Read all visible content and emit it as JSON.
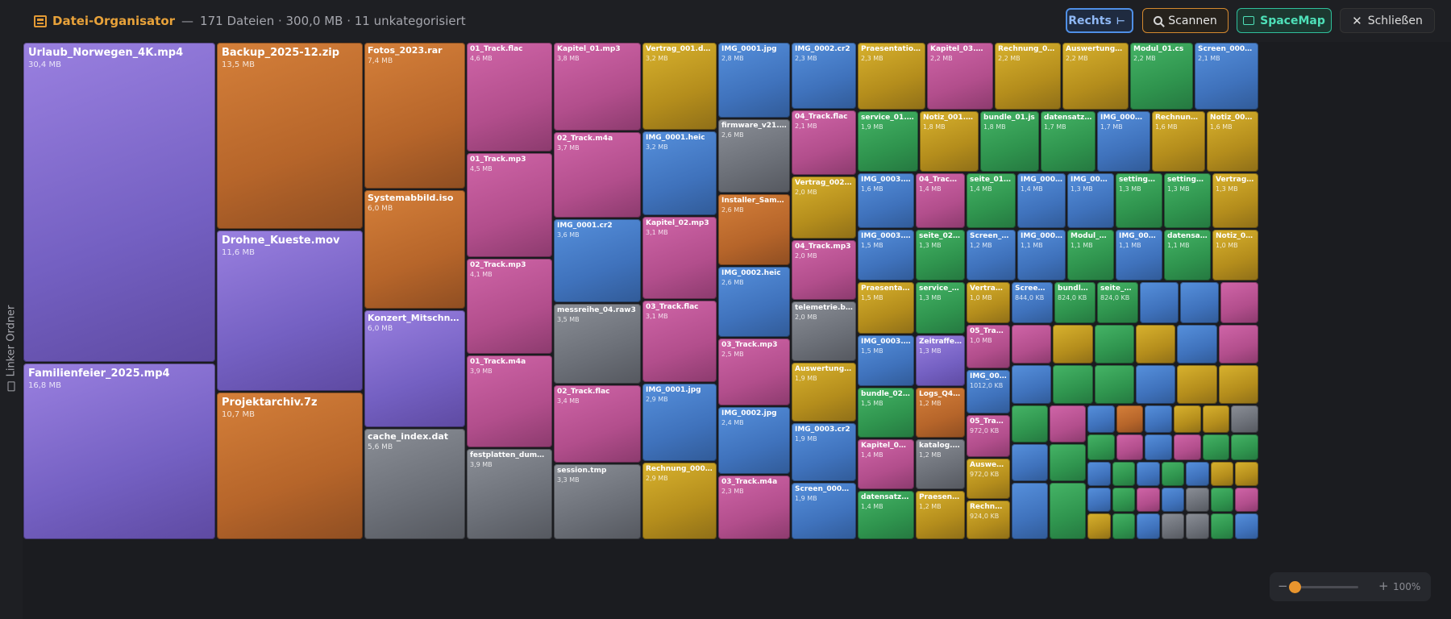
{
  "header": {
    "app_name": "Datei-Organisator",
    "separator": "—",
    "summary": "171 Dateien · 300,0 MB · 11 unkategorisiert",
    "buttons": {
      "rechts": "Rechts",
      "scan": "Scannen",
      "spacemap": "SpaceMap",
      "close": "Schließen"
    }
  },
  "sidebar": {
    "label": "Linker Ordner"
  },
  "colors": {
    "video": "#7a64c8",
    "archive": "#c06a2c",
    "audio": "#b84f8f",
    "document": "#c09a20",
    "image": "#4a7fc8",
    "code": "#33a257",
    "other": "#72767e",
    "accent": "#e8a23a"
  },
  "tiles": [
    {
      "name": "Urlaub_Norwegen_4K.mp4",
      "size": "30,4 MB",
      "cat": "video"
    },
    {
      "name": "Familienfeier_2025.mp4",
      "size": "16,8 MB",
      "cat": "video"
    },
    {
      "name": "Backup_2025-12.zip",
      "size": "13,5 MB",
      "cat": "archive"
    },
    {
      "name": "Drohne_Kueste.mov",
      "size": "11,6 MB",
      "cat": "video"
    },
    {
      "name": "Projektarchiv.7z",
      "size": "10,7 MB",
      "cat": "archive"
    },
    {
      "name": "Fotos_2023.rar",
      "size": "7,4 MB",
      "cat": "archive"
    },
    {
      "name": "Systemabbild.iso",
      "size": "6,0 MB",
      "cat": "archive"
    },
    {
      "name": "Konzert_Mitschnitt.mkv",
      "size": "6,0 MB",
      "cat": "video"
    },
    {
      "name": "cache_index.dat",
      "size": "5,6 MB",
      "cat": "other"
    },
    {
      "name": "01_Track.flac",
      "size": "4,6 MB",
      "cat": "audio"
    },
    {
      "name": "01_Track.mp3",
      "size": "4,5 MB",
      "cat": "audio"
    },
    {
      "name": "02_Track.mp3",
      "size": "4,1 MB",
      "cat": "audio"
    },
    {
      "name": "01_Track.m4a",
      "size": "3,9 MB",
      "cat": "audio"
    },
    {
      "name": "festplatten_dump.bin",
      "size": "3,9 MB",
      "cat": "other"
    },
    {
      "name": "Kapitel_01.mp3",
      "size": "3,8 MB",
      "cat": "audio"
    },
    {
      "name": "02_Track.m4a",
      "size": "3,7 MB",
      "cat": "audio"
    },
    {
      "name": "IMG_0001.cr2",
      "size": "3,6 MB",
      "cat": "image"
    },
    {
      "name": "messreihe_04.raw3",
      "size": "3,5 MB",
      "cat": "other"
    },
    {
      "name": "02_Track.flac",
      "size": "3,4 MB",
      "cat": "audio"
    },
    {
      "name": "session.tmp",
      "size": "3,3 MB",
      "cat": "other"
    },
    {
      "name": "Vertrag_001.docx",
      "size": "3,2 MB",
      "cat": "document"
    },
    {
      "name": "IMG_0001.heic",
      "size": "3,2 MB",
      "cat": "image"
    },
    {
      "name": "Kapitel_02.mp3",
      "size": "3,1 MB",
      "cat": "audio"
    },
    {
      "name": "03_Track.flac",
      "size": "3,1 MB",
      "cat": "audio"
    },
    {
      "name": "IMG_0001.jpg",
      "size": "2,9 MB",
      "cat": "image"
    },
    {
      "name": "Rechnung_0001.pdf",
      "size": "2,9 MB",
      "cat": "document"
    },
    {
      "name": "IMG_0001.jpg",
      "size": "2,8 MB",
      "cat": "image"
    },
    {
      "name": "firmware_v21.pkg",
      "size": "2,6 MB",
      "cat": "other"
    },
    {
      "name": "Installer_Sammlung.zip",
      "size": "2,6 MB",
      "cat": "archive"
    },
    {
      "name": "IMG_0002.heic",
      "size": "2,6 MB",
      "cat": "image"
    },
    {
      "name": "03_Track.mp3",
      "size": "2,5 MB",
      "cat": "audio"
    },
    {
      "name": "IMG_0002.jpg",
      "size": "2,4 MB",
      "cat": "image"
    },
    {
      "name": "03_Track.m4a",
      "size": "2,3 MB",
      "cat": "audio"
    },
    {
      "name": "IMG_0002.cr2",
      "size": "2,3 MB",
      "cat": "image"
    },
    {
      "name": "04_Track.flac",
      "size": "2,1 MB",
      "cat": "audio"
    },
    {
      "name": "Vertrag_002.docx",
      "size": "2,0 MB",
      "cat": "document"
    },
    {
      "name": "04_Track.mp3",
      "size": "2,0 MB",
      "cat": "audio"
    },
    {
      "name": "telemetrie.blob",
      "size": "2,0 MB",
      "cat": "other"
    },
    {
      "name": "Auswertung_02.xlsx",
      "size": "1,9 MB",
      "cat": "document"
    },
    {
      "name": "IMG_0003.cr2",
      "size": "1,9 MB",
      "cat": "image"
    },
    {
      "name": "Screen_0002.png",
      "size": "1,9 MB",
      "cat": "image"
    },
    {
      "name": "Praesentation_01.pptx",
      "size": "2,3 MB",
      "cat": "document"
    },
    {
      "name": "Kapitel_03.mp3",
      "size": "2,2 MB",
      "cat": "audio"
    },
    {
      "name": "Rechnung_0002.pdf",
      "size": "2,2 MB",
      "cat": "document"
    },
    {
      "name": "Auswertung_01.xlsx",
      "size": "2,2 MB",
      "cat": "document"
    },
    {
      "name": "Modul_01.cs",
      "size": "2,2 MB",
      "cat": "code"
    },
    {
      "name": "Screen_0001.png",
      "size": "2,1 MB",
      "cat": "image"
    },
    {
      "name": "service_01.py",
      "size": "1,9 MB",
      "cat": "code"
    },
    {
      "name": "Notiz_001.txt",
      "size": "1,8 MB",
      "cat": "document"
    },
    {
      "name": "bundle_01.js",
      "size": "1,8 MB",
      "cat": "code"
    },
    {
      "name": "datensatz_01.json",
      "size": "1,7 MB",
      "cat": "code"
    },
    {
      "name": "IMG_0002.jpg",
      "size": "1,7 MB",
      "cat": "image"
    },
    {
      "name": "Rechnung_0003...",
      "size": "1,6 MB",
      "cat": "document"
    },
    {
      "name": "Notiz_002.txt",
      "size": "1,6 MB",
      "cat": "document"
    },
    {
      "name": "IMG_0003.jpg",
      "size": "1,6 MB",
      "cat": "image"
    },
    {
      "name": "04_Track.m4a",
      "size": "1,4 MB",
      "cat": "audio"
    },
    {
      "name": "seite_01.html",
      "size": "1,4 MB",
      "cat": "code"
    },
    {
      "name": "IMG_0004.cr2",
      "size": "1,4 MB",
      "cat": "image"
    },
    {
      "name": "IMG_0004.jpg",
      "size": "1,3 MB",
      "cat": "image"
    },
    {
      "name": "settings_02.xml",
      "size": "1,3 MB",
      "cat": "code"
    },
    {
      "name": "settings_01.xml",
      "size": "1,3 MB",
      "cat": "code"
    },
    {
      "name": "Vertrag_003.d...",
      "size": "1,3 MB",
      "cat": "document"
    },
    {
      "name": "IMG_0003.jpg",
      "size": "1,5 MB",
      "cat": "image"
    },
    {
      "name": "seite_02.html",
      "size": "1,3 MB",
      "cat": "code"
    },
    {
      "name": "Screen_0003.png",
      "size": "1,2 MB",
      "cat": "image"
    },
    {
      "name": "IMG_0004.heic",
      "size": "1,1 MB",
      "cat": "image"
    },
    {
      "name": "Modul_02.cs",
      "size": "1,1 MB",
      "cat": "code"
    },
    {
      "name": "IMG_0004.jpg",
      "size": "1,1 MB",
      "cat": "image"
    },
    {
      "name": "datensatz_03....",
      "size": "1,1 MB",
      "cat": "code"
    },
    {
      "name": "Notiz_003.txt",
      "size": "1,0 MB",
      "cat": "document"
    },
    {
      "name": "Praesentation_02....",
      "size": "1,5 MB",
      "cat": "document"
    },
    {
      "name": "service_02.py",
      "size": "1,3 MB",
      "cat": "code"
    },
    {
      "name": "Vertrag_004....",
      "size": "1,0 MB",
      "cat": "document"
    },
    {
      "name": "Screen_000...",
      "size": "844,0 KB",
      "cat": "image"
    },
    {
      "name": "bundle_03.js",
      "size": "824,0 KB",
      "cat": "code"
    },
    {
      "name": "seite_03.html",
      "size": "824,0 KB",
      "cat": "code"
    },
    {
      "name": "IMG_0003.heic",
      "size": "1,5 MB",
      "cat": "image"
    },
    {
      "name": "Zeitraffer_Son...",
      "size": "1,3 MB",
      "cat": "video"
    },
    {
      "name": "05_Track.mp3",
      "size": "1,0 MB",
      "cat": "audio"
    },
    {
      "name": "IMG_0005.jpg",
      "size": "1012,0 KB",
      "cat": "image"
    },
    {
      "name": "bundle_02.js",
      "size": "1,5 MB",
      "cat": "code"
    },
    {
      "name": "Logs_Q4.tar.gz",
      "size": "1,2 MB",
      "cat": "archive"
    },
    {
      "name": "05_Track.flac",
      "size": "972,0 KB",
      "cat": "audio"
    },
    {
      "name": "Kapitel_04.mp3",
      "size": "1,4 MB",
      "cat": "audio"
    },
    {
      "name": "katalog.idx",
      "size": "1,2 MB",
      "cat": "other"
    },
    {
      "name": "Auswertung_...",
      "size": "972,0 KB",
      "cat": "document"
    },
    {
      "name": "datensatz_02.json",
      "size": "1,4 MB",
      "cat": "code"
    },
    {
      "name": "Praesentation_...",
      "size": "1,2 MB",
      "cat": "document"
    },
    {
      "name": "Rechnung_0...",
      "size": "924,0 KB",
      "cat": "document"
    }
  ],
  "zoom": {
    "minus": "−",
    "plus": "+",
    "percent": "100%",
    "level": 0.0
  }
}
